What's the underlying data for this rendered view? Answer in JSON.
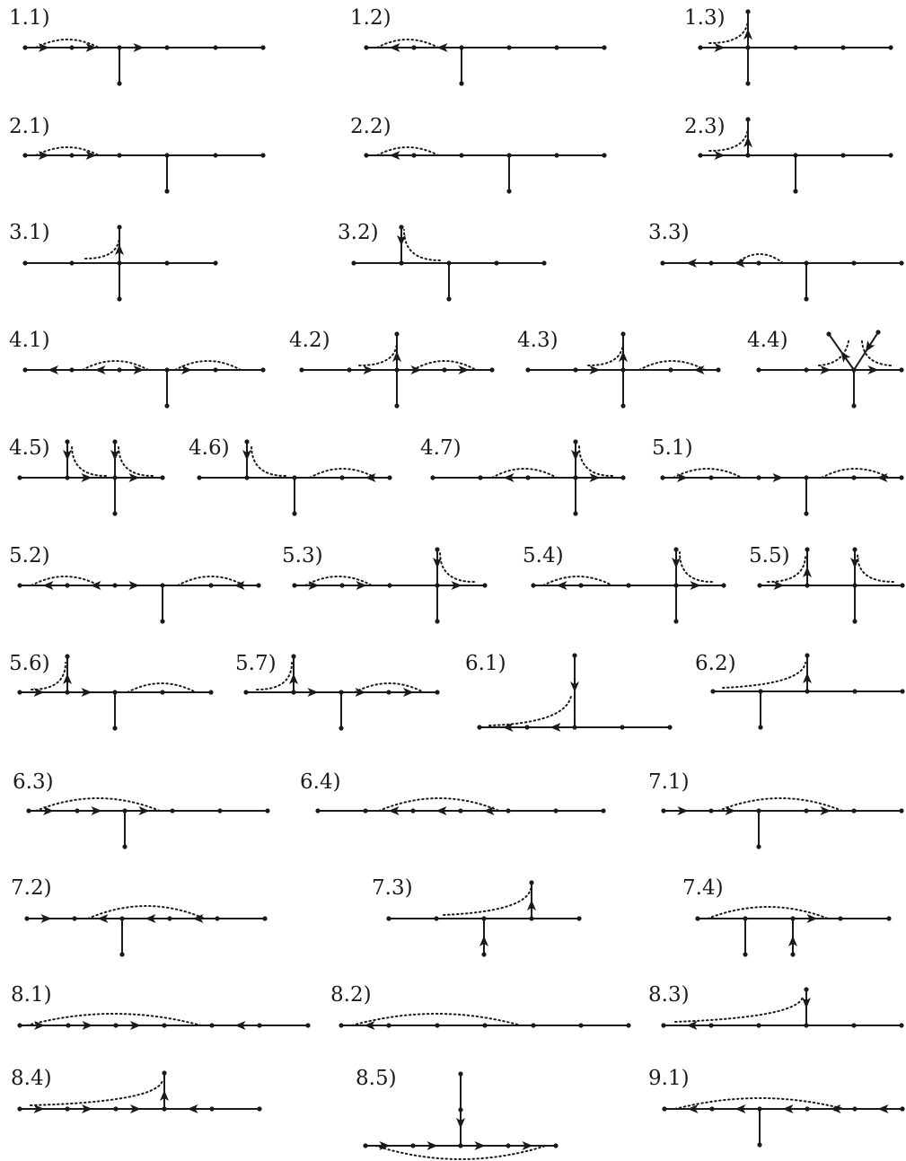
{
  "labels": {
    "d1_1": "1.1)",
    "d1_2": "1.2)",
    "d1_3": "1.3)",
    "d2_1": "2.1)",
    "d2_2": "2.2)",
    "d2_3": "2.3)",
    "d3_1": "3.1)",
    "d3_2": "3.2)",
    "d3_3": "3.3)",
    "d4_1": "4.1)",
    "d4_2": "4.2)",
    "d4_3": "4.3)",
    "d4_4": "4.4)",
    "d4_5": "4.5)",
    "d4_6": "4.6)",
    "d4_7": "4.7)",
    "d5_1": "5.1)",
    "d5_2": "5.2)",
    "d5_3": "5.3)",
    "d5_4": "5.4)",
    "d5_5": "5.5)",
    "d5_6": "5.6)",
    "d5_7": "5.7)",
    "d6_1": "6.1)",
    "d6_2": "6.2)",
    "d6_3": "6.3)",
    "d6_4": "6.4)",
    "d7_1": "7.1)",
    "d7_2": "7.2)",
    "d7_3": "7.3)",
    "d7_4": "7.4)",
    "d8_1": "8.1)",
    "d8_2": "8.2)",
    "d8_3": "8.3)",
    "d8_4": "8.4)",
    "d8_5": "8.5)",
    "d9_1": "9.1)"
  }
}
